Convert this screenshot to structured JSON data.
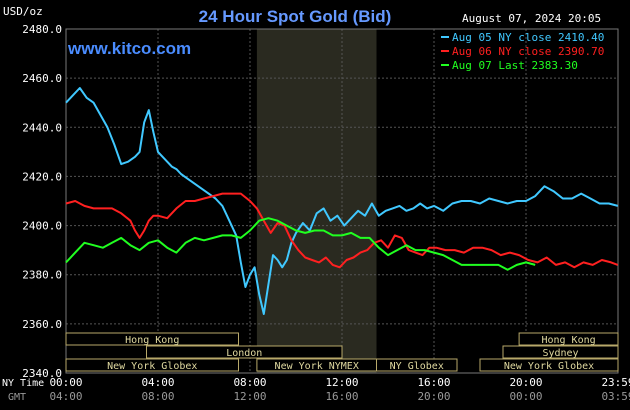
{
  "header": {
    "title": "24 Hour Spot Gold (Bid)",
    "timestamp": "August 07, 2024 20:05",
    "unit": "USD/oz",
    "watermark": "www.kitco.com"
  },
  "legend": [
    {
      "label": "Aug 05 NY close 2410.40",
      "color": "#40c8ff"
    },
    {
      "label": "Aug 06 NY close 2390.70",
      "color": "#ff2020"
    },
    {
      "label": "Aug 07 Last 2383.30",
      "color": "#20ff20"
    }
  ],
  "sessions": [
    {
      "name": "Hong Kong",
      "start": 0,
      "end": 7.5,
      "row": 0
    },
    {
      "name": "Hong Kong",
      "start": 19.7,
      "end": 24,
      "row": 0
    },
    {
      "name": "London",
      "start": 3.5,
      "end": 12.0,
      "row": 1
    },
    {
      "name": "Sydney",
      "start": 19.0,
      "end": 24,
      "row": 1
    },
    {
      "name": "New York Globex",
      "start": 0,
      "end": 7.5,
      "row": 2
    },
    {
      "name": "New York NYMEX",
      "start": 8.3,
      "end": 13.5,
      "row": 2
    },
    {
      "name": "NY Globex",
      "start": 13.5,
      "end": 17.0,
      "row": 2
    },
    {
      "name": "New York Globex",
      "start": 18.0,
      "end": 24,
      "row": 2
    }
  ],
  "time_axis": {
    "row1_label": "NY Time",
    "row2_label": "GMT",
    "ny_ticks": [
      "00:00",
      "04:00",
      "08:00",
      "12:00",
      "16:00",
      "20:00",
      "23:59"
    ],
    "gmt_ticks": [
      "04:00",
      "08:00",
      "12:00",
      "16:00",
      "20:00",
      "00:00",
      "03:59"
    ]
  },
  "chart_data": {
    "type": "line",
    "title": "24 Hour Spot Gold (Bid)",
    "ylabel": "USD/oz",
    "xlabel": "",
    "ylim": [
      2340,
      2480
    ],
    "yticks": [
      "2340.0",
      "2360.0",
      "2380.0",
      "2400.0",
      "2420.0",
      "2440.0",
      "2460.0",
      "2480.0"
    ],
    "xlim": [
      0,
      24
    ],
    "grid": true,
    "highlight_band": [
      8.3,
      13.5
    ],
    "series": [
      {
        "name": "Aug 05 NY close 2410.40",
        "color": "#40c8ff",
        "x": [
          0,
          0.3,
          0.6,
          0.9,
          1.2,
          1.5,
          1.8,
          2.1,
          2.4,
          2.7,
          3.0,
          3.2,
          3.4,
          3.6,
          3.8,
          4.0,
          4.2,
          4.4,
          4.6,
          4.8,
          5.0,
          5.3,
          5.6,
          5.9,
          6.2,
          6.5,
          6.8,
          7.0,
          7.2,
          7.4,
          7.6,
          7.8,
          8.0,
          8.2,
          8.4,
          8.6,
          8.8,
          9.0,
          9.2,
          9.4,
          9.6,
          9.8,
          10.0,
          10.3,
          10.6,
          10.9,
          11.2,
          11.5,
          11.8,
          12.1,
          12.4,
          12.7,
          13.0,
          13.3,
          13.6,
          13.9,
          14.2,
          14.5,
          14.8,
          15.1,
          15.4,
          15.7,
          16.0,
          16.4,
          16.8,
          17.2,
          17.6,
          18.0,
          18.4,
          18.8,
          19.2,
          19.6,
          20.0,
          20.4,
          20.8,
          21.2,
          21.6,
          22.0,
          22.4,
          22.8,
          23.2,
          23.6,
          23.99
        ],
        "y": [
          2450,
          2453,
          2456,
          2452,
          2450,
          2445,
          2440,
          2433,
          2425,
          2426,
          2428,
          2430,
          2442,
          2447,
          2438,
          2430,
          2428,
          2426,
          2424,
          2423,
          2421,
          2419,
          2417,
          2415,
          2413,
          2411,
          2408,
          2404,
          2400,
          2396,
          2385,
          2375,
          2380,
          2383,
          2372,
          2364,
          2376,
          2388,
          2386,
          2383,
          2386,
          2393,
          2397,
          2401,
          2398,
          2405,
          2407,
          2402,
          2404,
          2400,
          2403,
          2406,
          2404,
          2409,
          2404,
          2406,
          2407,
          2408,
          2406,
          2407,
          2409,
          2407,
          2408,
          2406,
          2409,
          2410,
          2410,
          2409,
          2411,
          2410,
          2409,
          2410,
          2410,
          2412,
          2416,
          2414,
          2411,
          2411,
          2413,
          2411,
          2409,
          2409,
          2408
        ]
      },
      {
        "name": "Aug 06 NY close 2390.70",
        "color": "#ff2020",
        "x": [
          0,
          0.4,
          0.8,
          1.2,
          1.6,
          2.0,
          2.4,
          2.8,
          3.0,
          3.2,
          3.4,
          3.6,
          3.8,
          4.0,
          4.4,
          4.8,
          5.2,
          5.6,
          6.0,
          6.4,
          6.8,
          7.2,
          7.6,
          8.0,
          8.3,
          8.6,
          8.9,
          9.2,
          9.5,
          9.8,
          10.1,
          10.4,
          10.7,
          11.0,
          11.3,
          11.6,
          11.9,
          12.2,
          12.5,
          12.8,
          13.1,
          13.4,
          13.7,
          14.0,
          14.3,
          14.6,
          14.9,
          15.2,
          15.5,
          15.8,
          16.1,
          16.5,
          16.9,
          17.3,
          17.7,
          18.1,
          18.5,
          18.9,
          19.3,
          19.7,
          20.1,
          20.5,
          20.9,
          21.3,
          21.7,
          22.1,
          22.5,
          22.9,
          23.3,
          23.7,
          23.99
        ],
        "y": [
          2409,
          2410,
          2408,
          2407,
          2407,
          2407,
          2405,
          2402,
          2398,
          2395,
          2398,
          2402,
          2404,
          2404,
          2403,
          2407,
          2410,
          2410,
          2411,
          2412,
          2413,
          2413,
          2413,
          2410,
          2407,
          2402,
          2397,
          2401,
          2400,
          2394,
          2390,
          2387,
          2386,
          2385,
          2387,
          2384,
          2383,
          2386,
          2387,
          2389,
          2390,
          2393,
          2394,
          2391,
          2396,
          2395,
          2390,
          2389,
          2388,
          2391,
          2391,
          2390,
          2390,
          2389,
          2391,
          2391,
          2390,
          2388,
          2389,
          2388,
          2386,
          2385,
          2387,
          2384,
          2385,
          2383,
          2385,
          2384,
          2386,
          2385,
          2384
        ]
      },
      {
        "name": "Aug 07 Last 2383.30",
        "color": "#20ff20",
        "x": [
          0,
          0.4,
          0.8,
          1.2,
          1.6,
          2.0,
          2.4,
          2.8,
          3.2,
          3.6,
          4.0,
          4.4,
          4.8,
          5.2,
          5.6,
          6.0,
          6.4,
          6.8,
          7.2,
          7.6,
          8.0,
          8.4,
          8.8,
          9.2,
          9.6,
          10.0,
          10.4,
          10.8,
          11.2,
          11.6,
          12.0,
          12.4,
          12.8,
          13.2,
          13.6,
          14.0,
          14.4,
          14.8,
          15.2,
          15.6,
          16.0,
          16.4,
          16.8,
          17.2,
          17.6,
          18.0,
          18.4,
          18.8,
          19.2,
          19.6,
          20.0,
          20.4
        ],
        "y": [
          2385,
          2389,
          2393,
          2392,
          2391,
          2393,
          2395,
          2392,
          2390,
          2393,
          2394,
          2391,
          2389,
          2393,
          2395,
          2394,
          2395,
          2396,
          2396,
          2395,
          2398,
          2402,
          2403,
          2402,
          2400,
          2398,
          2397,
          2398,
          2398,
          2396,
          2396,
          2397,
          2395,
          2395,
          2391,
          2388,
          2390,
          2392,
          2390,
          2390,
          2389,
          2388,
          2386,
          2384,
          2384,
          2384,
          2384,
          2384,
          2382,
          2384,
          2385,
          2384
        ]
      }
    ]
  }
}
